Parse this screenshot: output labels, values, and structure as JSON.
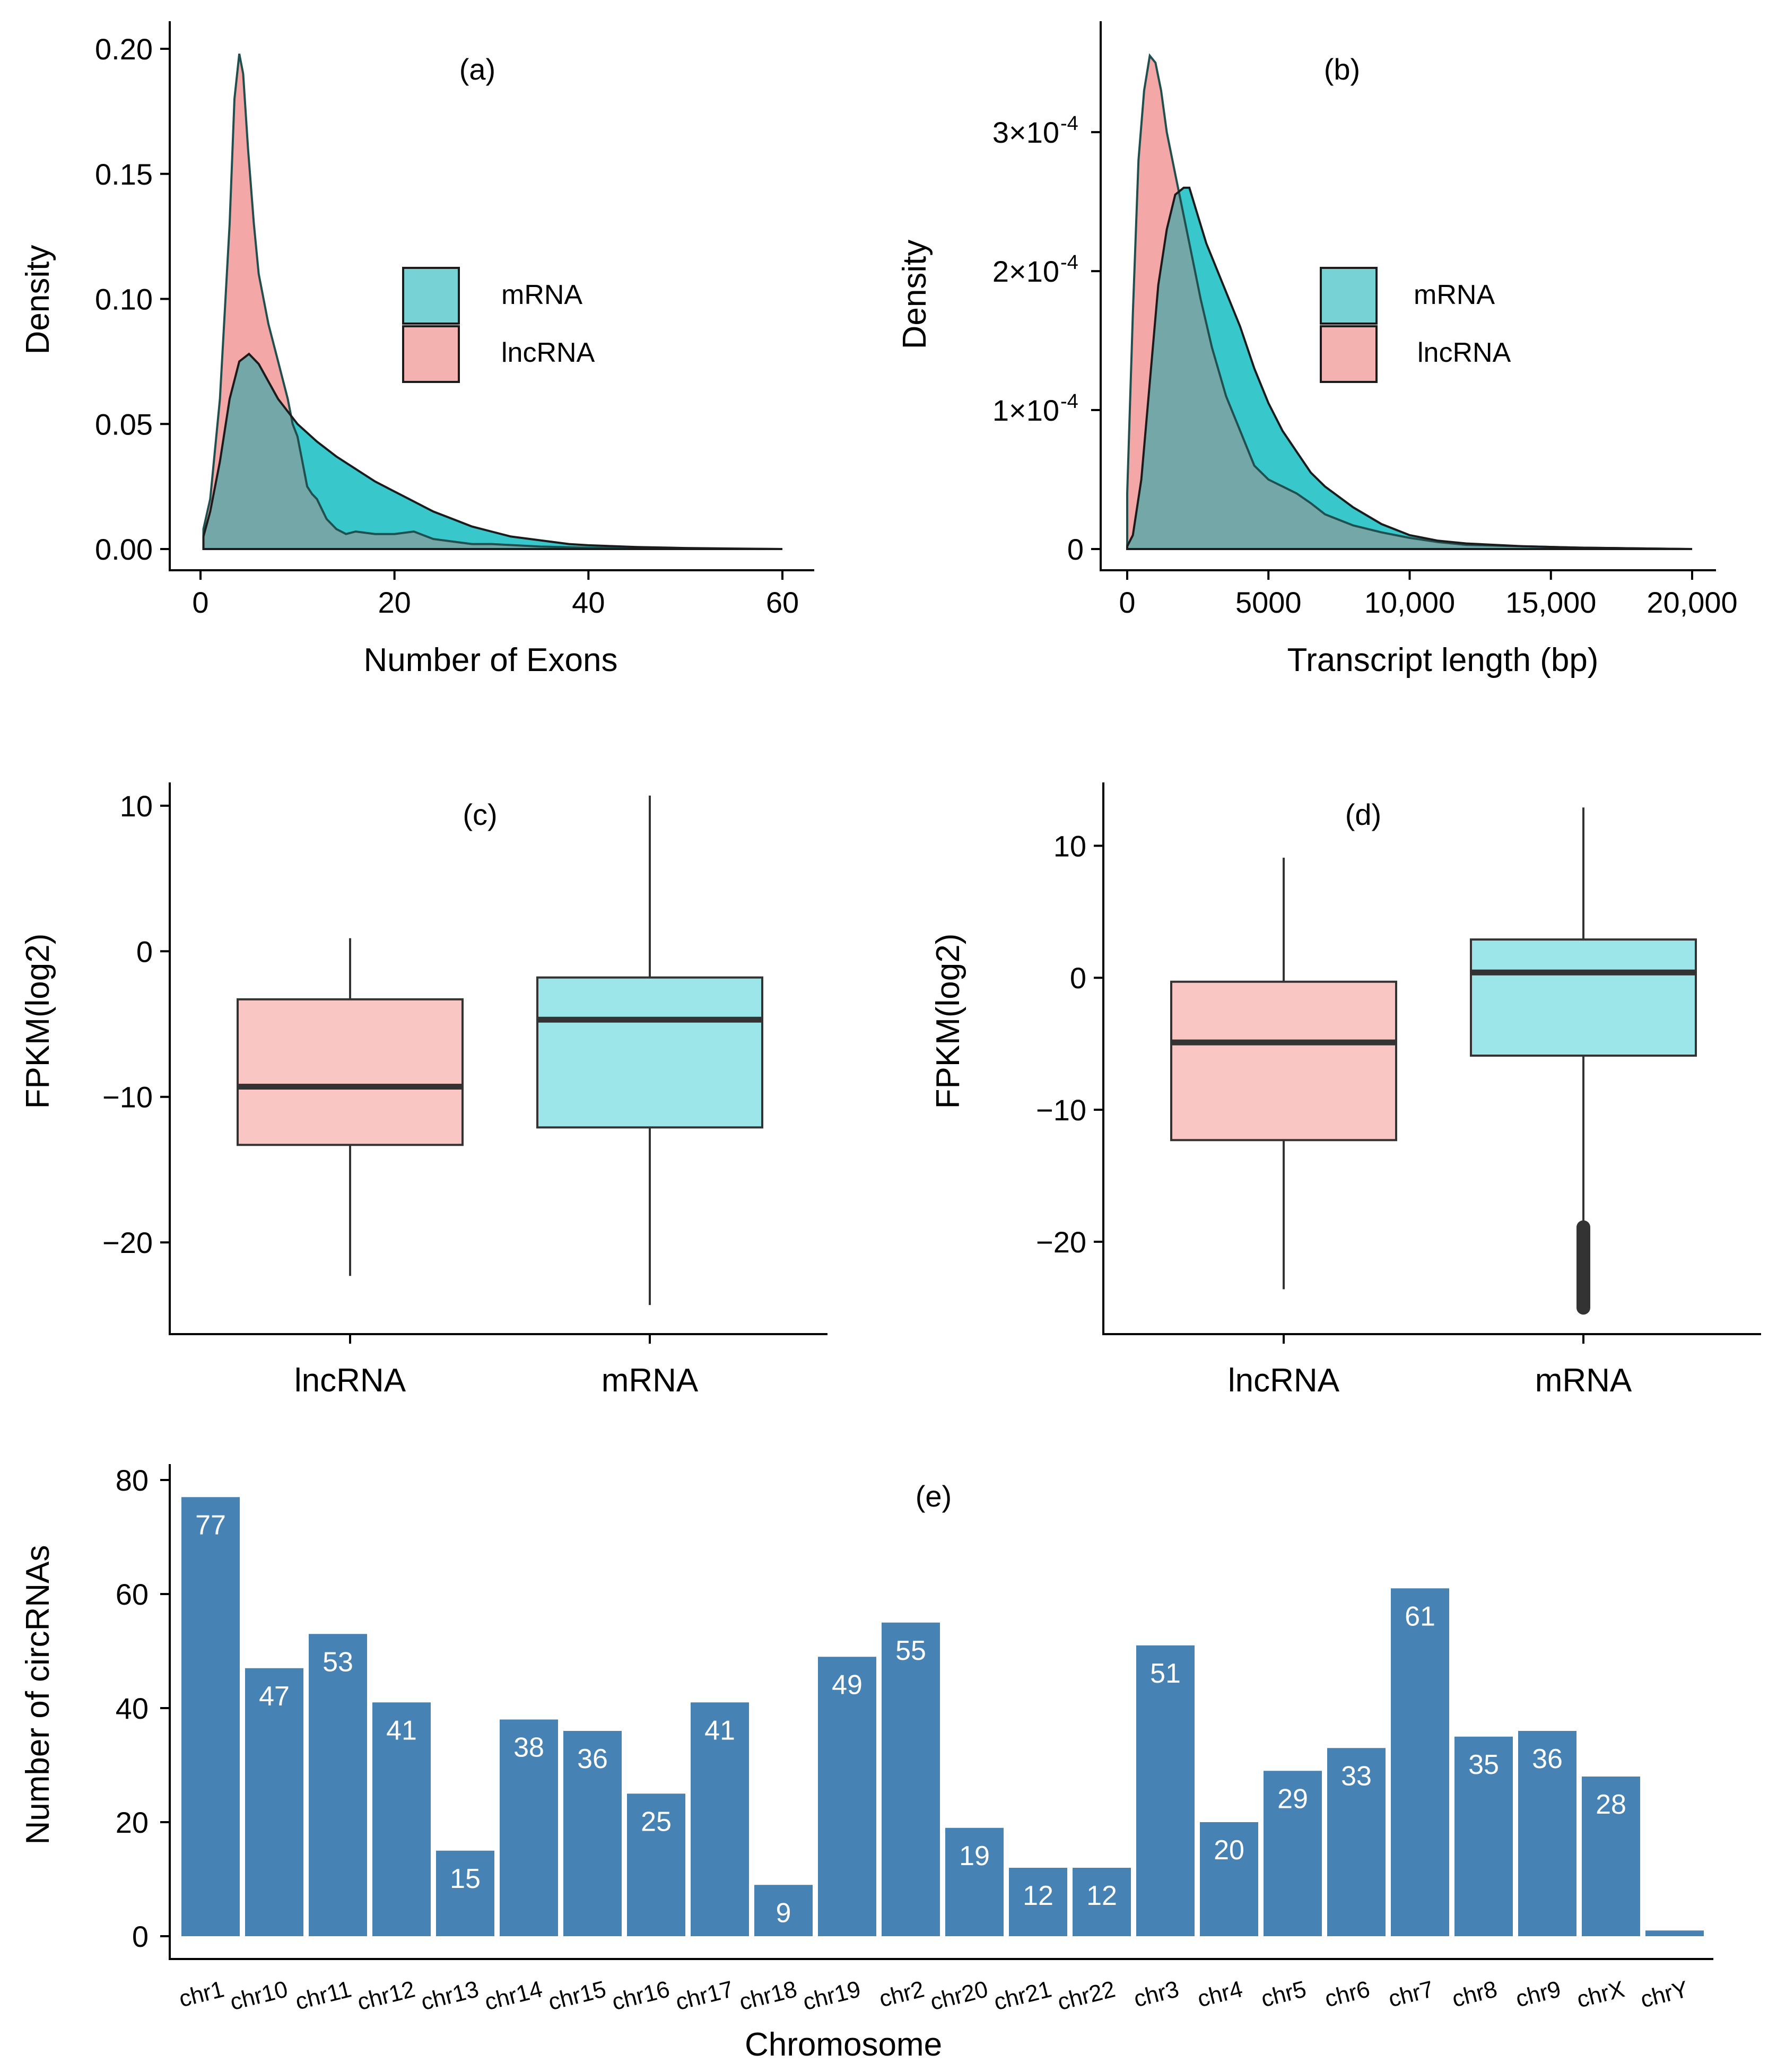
{
  "colors": {
    "mrna_fill": "#38C8CC",
    "lncrna_fill": "#F0898A",
    "overlap_fill": "#74A7A7",
    "box_lncrna": "#F9C6C4",
    "box_mrna": "#9CE5E8",
    "bar": "#4682B4",
    "line": "#1b1b1b"
  },
  "chart_data": [
    {
      "id": "a",
      "type": "area",
      "panel_label": "(a)",
      "xlabel": "Number of Exons",
      "ylabel": "Density",
      "xlim": [
        0,
        60
      ],
      "ylim": [
        0,
        0.2
      ],
      "x_ticks": [
        0,
        20,
        40,
        60
      ],
      "x_tick_labels": [
        "0",
        "20",
        "40",
        "60"
      ],
      "y_ticks": [
        0,
        0.05,
        0.1,
        0.15,
        0.2
      ],
      "y_tick_labels": [
        "0.00",
        "0.05",
        "0.10",
        "0.15",
        "0.20"
      ],
      "legend": [
        "mRNA",
        "lncRNA"
      ],
      "series": [
        {
          "name": "lncRNA",
          "x": [
            0.3,
            1,
            2,
            3,
            3.5,
            4,
            4.4,
            4.9,
            5.5,
            6,
            7,
            8,
            9,
            9.5,
            10,
            10.5,
            11,
            11.5,
            12,
            13,
            14,
            15,
            16,
            18,
            20,
            22,
            24,
            26,
            28,
            30,
            35,
            40,
            45,
            50,
            55,
            60
          ],
          "y": [
            0.008,
            0.02,
            0.06,
            0.13,
            0.18,
            0.198,
            0.19,
            0.16,
            0.13,
            0.11,
            0.09,
            0.075,
            0.06,
            0.05,
            0.045,
            0.035,
            0.025,
            0.022,
            0.02,
            0.012,
            0.008,
            0.006,
            0.007,
            0.006,
            0.006,
            0.007,
            0.004,
            0.003,
            0.002,
            0.002,
            0.001,
            0.0005,
            0.0003,
            0.0002,
            0.0001,
            0
          ]
        },
        {
          "name": "mRNA",
          "x": [
            0.3,
            1,
            2,
            3,
            4,
            5,
            6,
            7,
            8,
            9,
            10,
            12,
            14,
            16,
            18,
            20,
            22,
            24,
            26,
            28,
            30,
            32,
            34,
            36,
            38,
            40,
            45,
            50,
            55,
            60
          ],
          "y": [
            0.005,
            0.015,
            0.035,
            0.06,
            0.075,
            0.078,
            0.074,
            0.067,
            0.06,
            0.055,
            0.05,
            0.043,
            0.037,
            0.032,
            0.027,
            0.023,
            0.019,
            0.015,
            0.012,
            0.009,
            0.007,
            0.005,
            0.004,
            0.003,
            0.002,
            0.0015,
            0.0008,
            0.0004,
            0.0002,
            0
          ]
        }
      ]
    },
    {
      "id": "b",
      "type": "area",
      "panel_label": "(b)",
      "xlabel": "Transcript length (bp)",
      "ylabel": "Density",
      "xlim": [
        0,
        20000
      ],
      "ylim": [
        0,
        0.00036
      ],
      "x_ticks": [
        0,
        5000,
        10000,
        15000,
        20000
      ],
      "x_tick_labels": [
        "0",
        "5000",
        "10,000",
        "15,000",
        "20,000"
      ],
      "y_ticks": [
        0,
        0.0001,
        0.0002,
        0.0003
      ],
      "y_tick_labels": [
        "0",
        "1×10",
        "2×10",
        "3×10"
      ],
      "y_tick_exponent": "-4",
      "legend": [
        "mRNA",
        "lncRNA"
      ],
      "series": [
        {
          "name": "lncRNA",
          "x": [
            0,
            200,
            400,
            600,
            800,
            1000,
            1200,
            1400,
            1700,
            2000,
            2300,
            2600,
            3000,
            3500,
            4000,
            4500,
            5000,
            5500,
            6000,
            6500,
            7000,
            8000,
            9000,
            10000,
            11000,
            12000,
            14000,
            16000,
            20000
          ],
          "y": [
            4e-05,
            0.00017,
            0.00028,
            0.00033,
            0.000355,
            0.00035,
            0.00033,
            0.0003,
            0.00027,
            0.00024,
            0.00021,
            0.00018,
            0.000145,
            0.00011,
            8.5e-05,
            6e-05,
            5e-05,
            4.5e-05,
            4e-05,
            3.3e-05,
            2.5e-05,
            1.7e-05,
            1.2e-05,
            8e-06,
            5e-06,
            3e-06,
            2e-06,
            1e-06,
            0
          ]
        },
        {
          "name": "mRNA",
          "x": [
            0,
            200,
            500,
            800,
            1100,
            1400,
            1700,
            2000,
            2200,
            2500,
            2800,
            3200,
            3600,
            4000,
            4500,
            5000,
            5500,
            6000,
            6500,
            7000,
            8000,
            9000,
            10000,
            11000,
            12000,
            14000,
            16000,
            18000,
            20000
          ],
          "y": [
            2e-06,
            1e-05,
            5e-05,
            0.00012,
            0.00019,
            0.00023,
            0.000255,
            0.00026,
            0.00026,
            0.00024,
            0.00022,
            0.0002,
            0.00018,
            0.00016,
            0.00013,
            0.000105,
            8.5e-05,
            7e-05,
            5.5e-05,
            4.5e-05,
            3e-05,
            1.8e-05,
            1e-05,
            6e-06,
            4e-06,
            2e-06,
            1e-06,
            5e-07,
            0
          ]
        }
      ]
    },
    {
      "id": "c",
      "type": "box",
      "panel_label": "(c)",
      "ylabel": "FPKM(log2)",
      "categories": [
        "lncRNA",
        "mRNA"
      ],
      "ylim": [
        -26.3,
        11.6
      ],
      "y_ticks": [
        10,
        0,
        -10,
        -20
      ],
      "y_tick_labels": [
        "10",
        "0",
        "−10",
        "−20"
      ],
      "boxes": [
        {
          "name": "lncRNA",
          "min": -22.3,
          "q1": -13.3,
          "median": -9.3,
          "q3": -3.3,
          "max": 0.9
        },
        {
          "name": "mRNA",
          "min": -24.3,
          "q1": -12.1,
          "median": -4.7,
          "q3": -1.8,
          "max": 10.7
        }
      ]
    },
    {
      "id": "d",
      "type": "box",
      "panel_label": "(d)",
      "ylabel": "FPKM(log2)",
      "categories": [
        "lncRNA",
        "mRNA"
      ],
      "ylim": [
        -27,
        14.8
      ],
      "y_ticks": [
        10,
        0,
        -10,
        -20
      ],
      "y_tick_labels": [
        "10",
        "0",
        "−10",
        "−20"
      ],
      "boxes": [
        {
          "name": "lncRNA",
          "min": -23.6,
          "q1": -12.3,
          "median": -4.9,
          "q3": -0.3,
          "max": 9.1,
          "outliers": []
        },
        {
          "name": "mRNA",
          "min": -18.8,
          "q1": -5.9,
          "median": 0.4,
          "q3": 2.9,
          "max": 12.9,
          "outliers_from": -25,
          "outliers_to": -18.9
        }
      ]
    },
    {
      "id": "e",
      "type": "bar",
      "panel_label": "(e)",
      "xlabel": "Chromosome",
      "ylabel": "Number of circRNAs",
      "ylim": [
        0,
        85
      ],
      "y_ticks": [
        0,
        20,
        40,
        60,
        80
      ],
      "y_tick_labels": [
        "0",
        "20",
        "40",
        "60",
        "80"
      ],
      "categories": [
        "chr1",
        "chr10",
        "chr11",
        "chr12",
        "chr13",
        "chr14",
        "chr15",
        "chr16",
        "chr17",
        "chr18",
        "chr19",
        "chr2",
        "chr20",
        "chr21",
        "chr22",
        "chr3",
        "chr4",
        "chr5",
        "chr6",
        "chr7",
        "chr8",
        "chr9",
        "chrX",
        "chrY"
      ],
      "values": [
        77,
        47,
        53,
        41,
        15,
        38,
        36,
        25,
        41,
        9,
        49,
        55,
        19,
        12,
        12,
        51,
        20,
        29,
        33,
        61,
        35,
        36,
        28,
        1
      ],
      "value_labels": [
        "77",
        "47",
        "53",
        "41",
        "15",
        "38",
        "36",
        "25",
        "41",
        "9",
        "49",
        "55",
        "19",
        "12",
        "12",
        "51",
        "20",
        "29",
        "33",
        "61",
        "35",
        "36",
        "28",
        ""
      ]
    }
  ]
}
